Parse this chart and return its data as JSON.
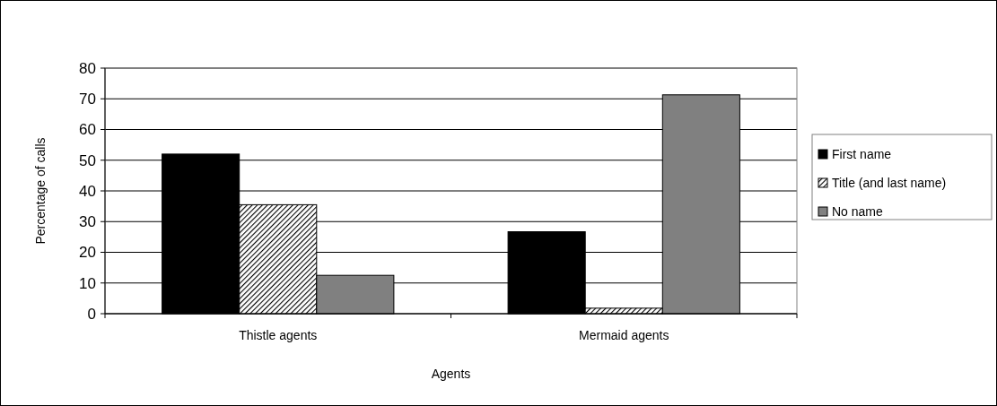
{
  "chart_data": {
    "type": "bar",
    "xlabel": "Agents",
    "ylabel": "Percentage of calls",
    "categories": [
      "Thistle agents",
      "Mermaid agents"
    ],
    "series": [
      {
        "name": "First name",
        "color": "#000000",
        "values": [
          52,
          26.7
        ]
      },
      {
        "name": "Title (and last name)",
        "color": "#000000",
        "values": [
          35.5,
          1.8
        ]
      },
      {
        "name": "No name",
        "color": "#808080",
        "values": [
          12.5,
          71.3
        ]
      }
    ],
    "ylim": [
      0,
      80
    ],
    "yticks": [
      0,
      10,
      20,
      30,
      40,
      50,
      60,
      70,
      80
    ],
    "grid": "y",
    "legend": "right"
  }
}
